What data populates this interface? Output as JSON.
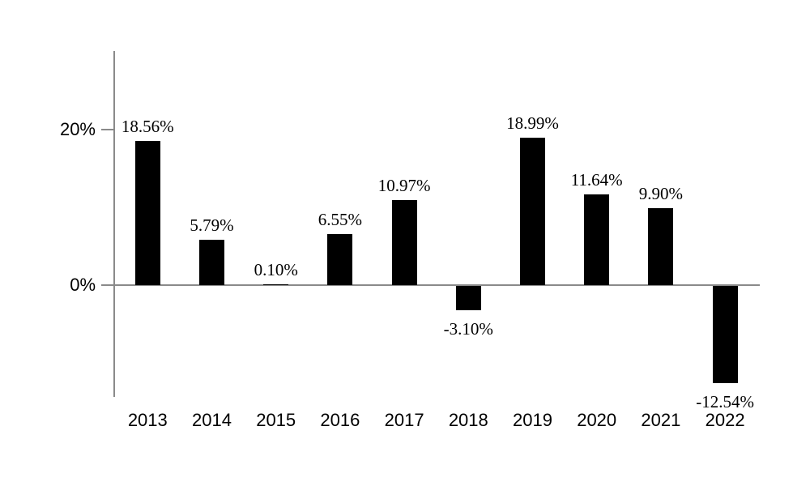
{
  "chart_data": {
    "type": "bar",
    "title": "",
    "xlabel": "",
    "ylabel": "",
    "categories": [
      "2013",
      "2014",
      "2015",
      "2016",
      "2017",
      "2018",
      "2019",
      "2020",
      "2021",
      "2022"
    ],
    "values": [
      18.56,
      5.79,
      0.1,
      6.55,
      10.97,
      -3.1,
      18.99,
      11.64,
      9.9,
      -12.54
    ],
    "value_labels": [
      "18.56%",
      "5.79%",
      "0.10%",
      "6.55%",
      "10.97%",
      "-3.10%",
      "18.99%",
      "11.64%",
      "9.90%",
      "-12.54%"
    ],
    "y_ticks": [
      {
        "label": "20%",
        "value": 20
      },
      {
        "label": "0%",
        "value": 0
      }
    ],
    "ylim": [
      -15,
      30
    ],
    "grid": false,
    "legend_position": "none",
    "bar_color": "#000000",
    "axis_color": "#8a8a8a",
    "text_color": "#000000"
  }
}
